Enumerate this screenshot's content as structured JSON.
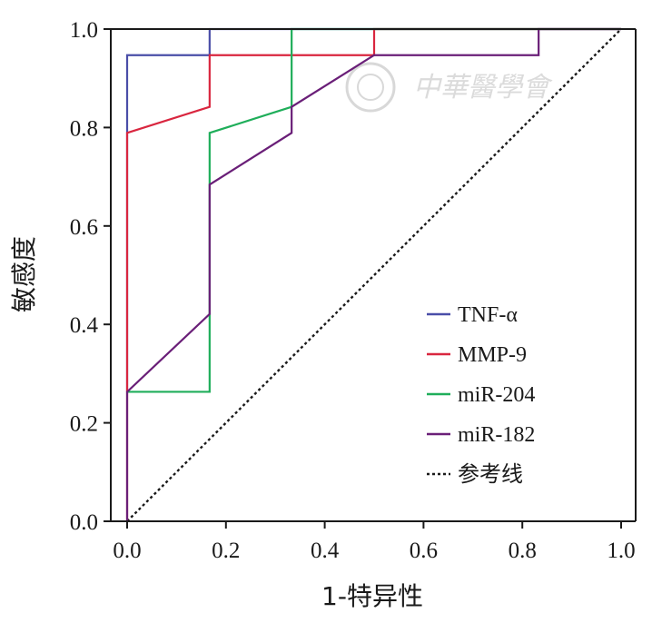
{
  "chart_data": {
    "type": "line",
    "title": "",
    "xlabel": "1-特异性",
    "ylabel": "敏感度",
    "xlim": [
      0,
      1.0
    ],
    "ylim": [
      0,
      1.0
    ],
    "x_ticks": [
      "0.0",
      "0.2",
      "0.4",
      "0.6",
      "0.8",
      "1.0"
    ],
    "y_ticks": [
      "0.0",
      "0.2",
      "0.4",
      "0.6",
      "0.8",
      "1.0"
    ],
    "grid": false,
    "legend_position": "bottom-right",
    "series": [
      {
        "name": "TNF-α",
        "color": "#4a4ea8",
        "points": [
          [
            0,
            0.263
          ],
          [
            0,
            0.789
          ],
          [
            0,
            0.947
          ],
          [
            0.167,
            0.947
          ],
          [
            0.167,
            1.0
          ],
          [
            1.0,
            1.0
          ]
        ]
      },
      {
        "name": "MMP-9",
        "color": "#d9263f",
        "points": [
          [
            0,
            0
          ],
          [
            0,
            0.263
          ],
          [
            0,
            0.789
          ],
          [
            0.167,
            0.842
          ],
          [
            0.167,
            0.947
          ],
          [
            0.5,
            0.947
          ],
          [
            0.5,
            1.0
          ],
          [
            1.0,
            1.0
          ]
        ]
      },
      {
        "name": "miR-204",
        "color": "#1fae5a",
        "points": [
          [
            0,
            0.263
          ],
          [
            0.167,
            0.263
          ],
          [
            0.167,
            0.789
          ],
          [
            0.333,
            0.842
          ],
          [
            0.333,
            1.0
          ],
          [
            1.0,
            1.0
          ]
        ]
      },
      {
        "name": "miR-182",
        "color": "#6a1f78",
        "points": [
          [
            0,
            0
          ],
          [
            0,
            0.263
          ],
          [
            0.167,
            0.421
          ],
          [
            0.167,
            0.684
          ],
          [
            0.333,
            0.789
          ],
          [
            0.333,
            0.842
          ],
          [
            0.5,
            0.947
          ],
          [
            0.833,
            0.947
          ],
          [
            0.833,
            1.0
          ],
          [
            1.0,
            1.0
          ]
        ]
      }
    ],
    "reference_line": {
      "name": "参考线",
      "color": "#1a1a1a",
      "points": [
        [
          0,
          0
        ],
        [
          1.0,
          1.0
        ]
      ]
    }
  },
  "watermark": {
    "text": "中華醫學會"
  }
}
